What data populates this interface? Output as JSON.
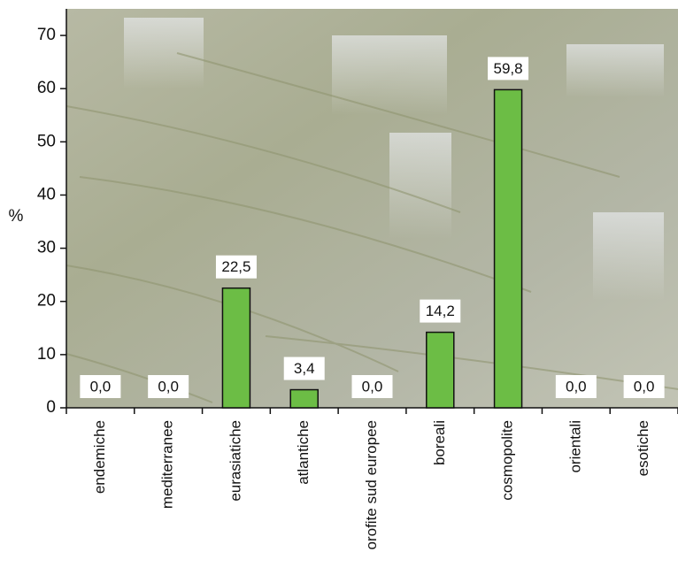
{
  "chart_data": {
    "type": "bar",
    "y_label": "%",
    "categories": [
      "endemiche",
      "mediterranee",
      "eurasiatiche",
      "atlantiche",
      "orofite sud europee",
      "boreali",
      "cosmopolite",
      "orientali",
      "esotiche"
    ],
    "values": [
      0,
      0,
      22.5,
      3.4,
      0,
      14.2,
      59.8,
      0,
      0
    ],
    "value_labels": [
      "0,0",
      "0,0",
      "22,5",
      "3,4",
      "0,0",
      "14,2",
      "59,8",
      "0,0",
      "0,0"
    ],
    "color": "#6cbd45",
    "ylim": [
      0,
      75
    ],
    "yticks": [
      0,
      10,
      20,
      30,
      40,
      50,
      60,
      70
    ]
  }
}
